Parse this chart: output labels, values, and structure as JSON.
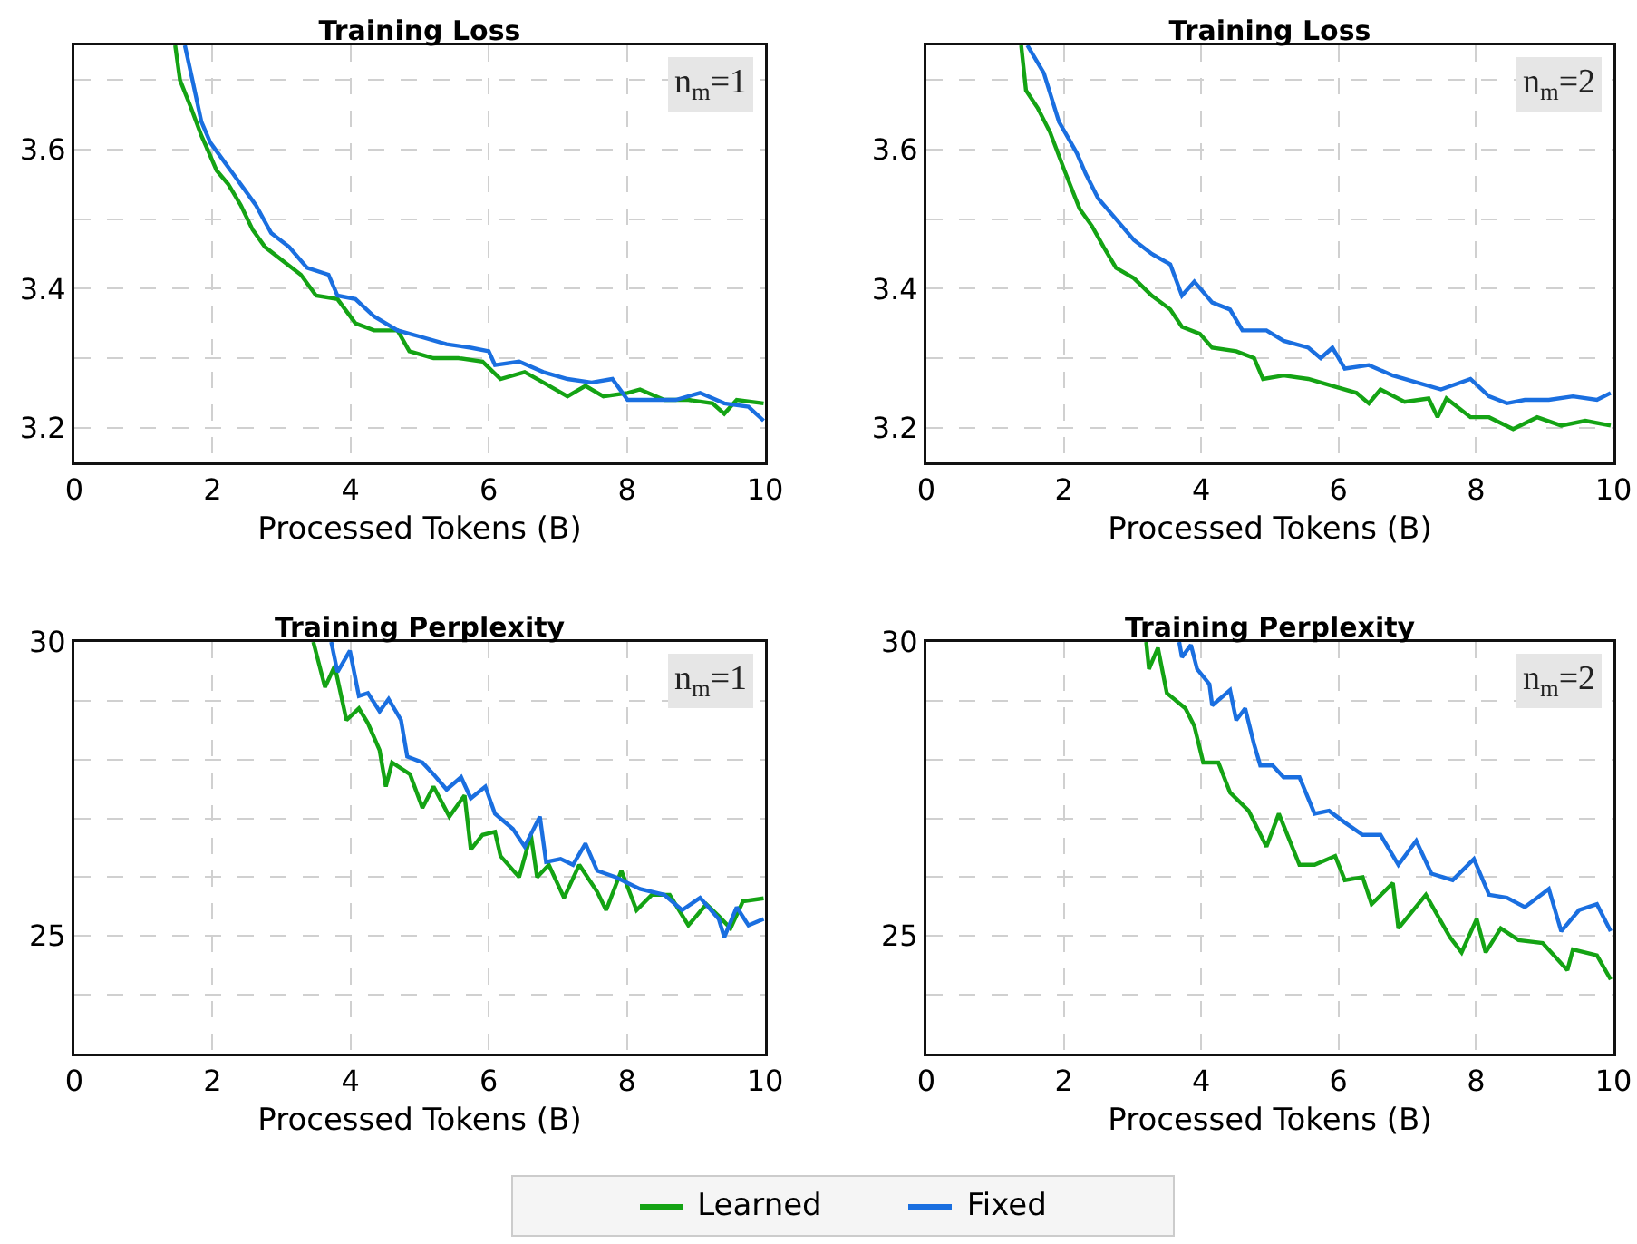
{
  "chart_data": [
    {
      "type": "line",
      "title": "Training Loss",
      "xlabel": "Processed Tokens (B)",
      "annotations": [
        "n$_{m}$=1"
      ],
      "xlim": [
        0,
        10
      ],
      "xticks": [
        0,
        2,
        4,
        6,
        8,
        10
      ],
      "ylim": [
        3.15,
        3.75
      ],
      "yticks": [
        3.2,
        {
          "value": 3.3,
          "label": null
        },
        3.4,
        {
          "value": 3.5,
          "label": null
        },
        3.6,
        {
          "value": 3.7,
          "label": null
        }
      ],
      "grid": true,
      "legend": "bottom",
      "line_style": "solid",
      "marker": "none",
      "series": [
        {
          "name": "Learned",
          "color": "#14a314",
          "x": [
            1.46,
            1.53,
            1.69,
            1.84,
            1.93,
            2.06,
            2.23,
            2.41,
            2.58,
            2.76,
            3.02,
            3.28,
            3.5,
            3.81,
            4.07,
            4.34,
            4.68,
            4.85,
            5.2,
            5.56,
            5.91,
            6.17,
            6.52,
            6.79,
            7.14,
            7.4,
            7.66,
            8.01,
            8.19,
            8.54,
            8.89,
            9.24,
            9.41,
            9.59,
            9.98
          ],
          "values": [
            3.75,
            3.7,
            3.66,
            3.62,
            3.6,
            3.57,
            3.55,
            3.52,
            3.485,
            3.46,
            3.44,
            3.42,
            3.39,
            3.385,
            3.35,
            3.34,
            3.34,
            3.31,
            3.3,
            3.3,
            3.295,
            3.27,
            3.28,
            3.265,
            3.245,
            3.26,
            3.245,
            3.25,
            3.255,
            3.24,
            3.24,
            3.235,
            3.22,
            3.24,
            3.235
          ]
        },
        {
          "name": "Fixed",
          "color": "#1a6fe0",
          "x": [
            1.6,
            1.71,
            1.84,
            1.97,
            2.19,
            2.41,
            2.63,
            2.85,
            3.11,
            3.37,
            3.68,
            3.81,
            4.07,
            4.34,
            4.68,
            5.04,
            5.39,
            5.74,
            6.0,
            6.09,
            6.44,
            6.79,
            7.14,
            7.49,
            7.79,
            8.01,
            8.36,
            8.71,
            9.06,
            9.41,
            9.76,
            9.98
          ],
          "values": [
            3.75,
            3.7,
            3.64,
            3.61,
            3.58,
            3.55,
            3.52,
            3.48,
            3.46,
            3.43,
            3.42,
            3.39,
            3.385,
            3.36,
            3.34,
            3.33,
            3.32,
            3.315,
            3.31,
            3.29,
            3.295,
            3.28,
            3.27,
            3.265,
            3.27,
            3.24,
            3.24,
            3.24,
            3.25,
            3.235,
            3.23,
            3.21
          ]
        }
      ]
    },
    {
      "type": "line",
      "title": "Training Loss",
      "xlabel": "Processed Tokens (B)",
      "annotations": [
        "n$_{m}$=2"
      ],
      "xlim": [
        0,
        10
      ],
      "xticks": [
        0,
        2,
        4,
        6,
        8,
        10
      ],
      "ylim": [
        3.15,
        3.75
      ],
      "yticks": [
        3.2,
        {
          "value": 3.3,
          "label": null
        },
        3.4,
        {
          "value": 3.5,
          "label": null
        },
        3.6,
        {
          "value": 3.7,
          "label": null
        }
      ],
      "grid": true,
      "legend": "bottom",
      "line_style": "solid",
      "marker": "none",
      "series": [
        {
          "name": "Learned",
          "color": "#14a314",
          "x": [
            1.38,
            1.45,
            1.62,
            1.8,
            2.01,
            2.23,
            2.41,
            2.58,
            2.76,
            3.02,
            3.28,
            3.55,
            3.72,
            3.98,
            4.16,
            4.51,
            4.77,
            4.9,
            5.2,
            5.56,
            5.91,
            6.26,
            6.44,
            6.61,
            6.96,
            7.31,
            7.44,
            7.57,
            7.92,
            8.19,
            8.54,
            8.89,
            9.24,
            9.59,
            9.96
          ],
          "values": [
            3.75,
            3.685,
            3.66,
            3.625,
            3.57,
            3.515,
            3.49,
            3.46,
            3.43,
            3.415,
            3.39,
            3.37,
            3.345,
            3.335,
            3.315,
            3.31,
            3.3,
            3.27,
            3.275,
            3.27,
            3.26,
            3.25,
            3.235,
            3.255,
            3.237,
            3.242,
            3.215,
            3.242,
            3.215,
            3.215,
            3.198,
            3.215,
            3.203,
            3.21,
            3.203
          ]
        },
        {
          "name": "Fixed",
          "color": "#1a6fe0",
          "x": [
            1.47,
            1.71,
            1.93,
            2.19,
            2.32,
            2.5,
            2.76,
            3.02,
            3.28,
            3.55,
            3.72,
            3.9,
            4.16,
            4.42,
            4.6,
            4.95,
            5.2,
            5.56,
            5.74,
            5.91,
            6.09,
            6.44,
            6.79,
            7.14,
            7.49,
            7.92,
            8.19,
            8.45,
            8.71,
            9.06,
            9.41,
            9.76,
            9.96
          ],
          "values": [
            3.75,
            3.71,
            3.64,
            3.595,
            3.565,
            3.53,
            3.5,
            3.47,
            3.45,
            3.435,
            3.39,
            3.41,
            3.38,
            3.37,
            3.34,
            3.34,
            3.325,
            3.315,
            3.3,
            3.315,
            3.285,
            3.29,
            3.275,
            3.265,
            3.255,
            3.27,
            3.245,
            3.235,
            3.24,
            3.24,
            3.245,
            3.24,
            3.25
          ]
        }
      ]
    },
    {
      "type": "line",
      "title": "Training Perplexity",
      "xlabel": "Processed Tokens (B)",
      "annotations": [
        "n$_{m}$=1"
      ],
      "xlim": [
        0,
        10
      ],
      "xticks": [
        0,
        2,
        4,
        6,
        8,
        10
      ],
      "ylim": [
        23,
        30
      ],
      "yticks": [
        {
          "value": 24,
          "label": null
        },
        25,
        {
          "value": 26,
          "label": null
        },
        {
          "value": 27,
          "label": null
        },
        {
          "value": 28,
          "label": null
        },
        {
          "value": 29,
          "label": null
        },
        30
      ],
      "grid": true,
      "legend": "bottom",
      "line_style": "solid",
      "marker": "none",
      "series": [
        {
          "name": "Learned",
          "color": "#14a314",
          "x": [
            3.46,
            3.63,
            3.77,
            3.94,
            4.12,
            4.25,
            4.42,
            4.51,
            4.6,
            4.86,
            5.04,
            5.2,
            5.43,
            5.65,
            5.74,
            5.91,
            6.09,
            6.17,
            6.44,
            6.61,
            6.7,
            6.87,
            7.09,
            7.31,
            7.57,
            7.7,
            7.92,
            8.14,
            8.36,
            8.62,
            8.89,
            9.15,
            9.33,
            9.5,
            9.68,
            9.98
          ],
          "values": [
            30,
            29.23,
            29.59,
            28.67,
            28.87,
            28.62,
            28.16,
            27.54,
            27.95,
            27.75,
            27.18,
            27.54,
            27.03,
            27.39,
            26.47,
            26.72,
            26.77,
            26.36,
            26.0,
            26.72,
            26.0,
            26.21,
            25.65,
            26.21,
            25.75,
            25.44,
            26.11,
            25.44,
            25.7,
            25.7,
            25.18,
            25.54,
            25.34,
            25.13,
            25.59,
            25.64
          ]
        },
        {
          "name": "Fixed",
          "color": "#1a6fe0",
          "x": [
            3.72,
            3.81,
            3.99,
            4.12,
            4.25,
            4.42,
            4.55,
            4.73,
            4.82,
            5.04,
            5.2,
            5.39,
            5.6,
            5.74,
            5.95,
            6.09,
            6.35,
            6.52,
            6.74,
            6.83,
            7.04,
            7.22,
            7.4,
            7.57,
            7.84,
            8.19,
            8.54,
            8.8,
            9.06,
            9.33,
            9.41,
            9.59,
            9.76,
            9.98
          ],
          "values": [
            30,
            29.49,
            29.85,
            29.08,
            29.13,
            28.82,
            29.03,
            28.67,
            28.05,
            27.95,
            27.75,
            27.49,
            27.7,
            27.34,
            27.54,
            27.08,
            26.82,
            26.52,
            27.03,
            26.26,
            26.31,
            26.21,
            26.57,
            26.11,
            26.0,
            25.8,
            25.7,
            25.44,
            25.65,
            25.29,
            24.98,
            25.49,
            25.18,
            25.29
          ]
        }
      ]
    },
    {
      "type": "line",
      "title": "Training Perplexity",
      "xlabel": "Processed Tokens (B)",
      "annotations": [
        "n$_{m}$=2"
      ],
      "xlim": [
        0,
        10
      ],
      "xticks": [
        0,
        2,
        4,
        6,
        8,
        10
      ],
      "ylim": [
        23,
        30
      ],
      "yticks": [
        {
          "value": 24,
          "label": null
        },
        25,
        {
          "value": 26,
          "label": null
        },
        {
          "value": 27,
          "label": null
        },
        {
          "value": 28,
          "label": null
        },
        {
          "value": 29,
          "label": null
        },
        30
      ],
      "grid": true,
      "legend": "bottom",
      "line_style": "solid",
      "marker": "none",
      "series": [
        {
          "name": "Learned",
          "color": "#14a314",
          "x": [
            3.2,
            3.24,
            3.37,
            3.5,
            3.77,
            3.9,
            4.03,
            4.25,
            4.42,
            4.69,
            4.95,
            5.13,
            5.43,
            5.65,
            5.95,
            6.09,
            6.35,
            6.48,
            6.79,
            6.87,
            7.27,
            7.62,
            7.79,
            8.01,
            8.14,
            8.36,
            8.62,
            8.97,
            9.33,
            9.41,
            9.76,
            9.96
          ],
          "values": [
            30,
            29.54,
            29.9,
            29.13,
            28.87,
            28.57,
            27.95,
            27.95,
            27.44,
            27.13,
            26.52,
            27.08,
            26.21,
            26.21,
            26.36,
            25.95,
            26.0,
            25.54,
            25.9,
            25.13,
            25.7,
            24.98,
            24.72,
            25.29,
            24.72,
            25.13,
            24.93,
            24.88,
            24.42,
            24.77,
            24.67,
            24.26
          ]
        },
        {
          "name": "Fixed",
          "color": "#1a6fe0",
          "x": [
            3.68,
            3.72,
            3.85,
            3.94,
            4.12,
            4.16,
            4.42,
            4.51,
            4.64,
            4.77,
            4.86,
            5.04,
            5.2,
            5.43,
            5.65,
            5.86,
            6.09,
            6.35,
            6.61,
            6.87,
            7.13,
            7.35,
            7.66,
            7.97,
            8.19,
            8.45,
            8.71,
            9.06,
            9.24,
            9.5,
            9.76,
            9.96
          ],
          "values": [
            30,
            29.74,
            29.95,
            29.54,
            29.28,
            28.92,
            29.18,
            28.67,
            28.87,
            28.26,
            27.9,
            27.9,
            27.7,
            27.7,
            27.08,
            27.13,
            26.93,
            26.72,
            26.72,
            26.21,
            26.62,
            26.06,
            25.95,
            26.31,
            25.7,
            25.65,
            25.49,
            25.8,
            25.08,
            25.44,
            25.54,
            25.08
          ]
        }
      ]
    }
  ]
}
